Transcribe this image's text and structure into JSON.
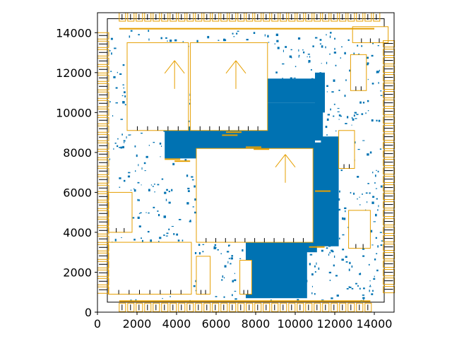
{
  "chart_data": {
    "type": "scatter",
    "title": "",
    "xlabel": "",
    "ylabel": "",
    "xlim": [
      0,
      15000
    ],
    "ylim": [
      0,
      15000
    ],
    "x_ticks": [
      0,
      2000,
      4000,
      6000,
      8000,
      10000,
      12000,
      14000
    ],
    "y_ticks": [
      0,
      2000,
      4000,
      6000,
      8000,
      10000,
      12000,
      14000
    ],
    "x_tick_labels": [
      "0",
      "2000",
      "4000",
      "6000",
      "8000",
      "10000",
      "12000",
      "14000"
    ],
    "y_tick_labels": [
      "0",
      "2000",
      "4000",
      "6000",
      "8000",
      "10000",
      "12000",
      "14000"
    ],
    "grid": false,
    "legend": "none",
    "colors": {
      "cell_fill": "#0072b2",
      "macro_outline": "#e69f00",
      "pin_marks": "#000000"
    },
    "macros": [
      {
        "x": 1500,
        "y": 9100,
        "w": 3100,
        "h": 4400
      },
      {
        "x": 4700,
        "y": 9100,
        "w": 3900,
        "h": 4400
      },
      {
        "x": 5000,
        "y": 3500,
        "w": 5900,
        "h": 4700
      },
      {
        "x": 550,
        "y": 900,
        "w": 4200,
        "h": 2600
      },
      {
        "x": 550,
        "y": 4000,
        "w": 1200,
        "h": 2000
      },
      {
        "x": 12800,
        "y": 11100,
        "w": 800,
        "h": 1800
      },
      {
        "x": 12200,
        "y": 7200,
        "w": 800,
        "h": 1900
      },
      {
        "x": 5000,
        "y": 900,
        "w": 700,
        "h": 1900
      },
      {
        "x": 7200,
        "y": 900,
        "w": 600,
        "h": 1700
      },
      {
        "x": 12900,
        "y": 13500,
        "w": 1800,
        "h": 800
      },
      {
        "x": 12700,
        "y": 3200,
        "w": 1100,
        "h": 1900
      }
    ],
    "cell_regions": [
      {
        "x": 3400,
        "y": 7700,
        "w": 7600,
        "h": 1500
      },
      {
        "x": 8100,
        "y": 8600,
        "w": 3300,
        "h": 1900
      },
      {
        "x": 7800,
        "y": 10500,
        "w": 3500,
        "h": 1200
      },
      {
        "x": 10900,
        "y": 3300,
        "w": 1300,
        "h": 5200
      },
      {
        "x": 7500,
        "y": 700,
        "w": 3100,
        "h": 2800
      },
      {
        "x": 9200,
        "y": 3000,
        "w": 1900,
        "h": 500
      },
      {
        "x": 11300,
        "y": 7800,
        "w": 1300,
        "h": 1000
      },
      {
        "x": 4600,
        "y": 8500,
        "w": 800,
        "h": 800
      },
      {
        "x": 11000,
        "y": 10000,
        "w": 500,
        "h": 2000
      }
    ],
    "io_pads": [
      {
        "side": "top",
        "from": 1100,
        "to": 14000
      },
      {
        "side": "bottom",
        "from": 1100,
        "to": 13800
      },
      {
        "side": "left",
        "from": 1000,
        "to": 14000
      },
      {
        "side": "right",
        "from": 1200,
        "to": 13600
      }
    ]
  }
}
